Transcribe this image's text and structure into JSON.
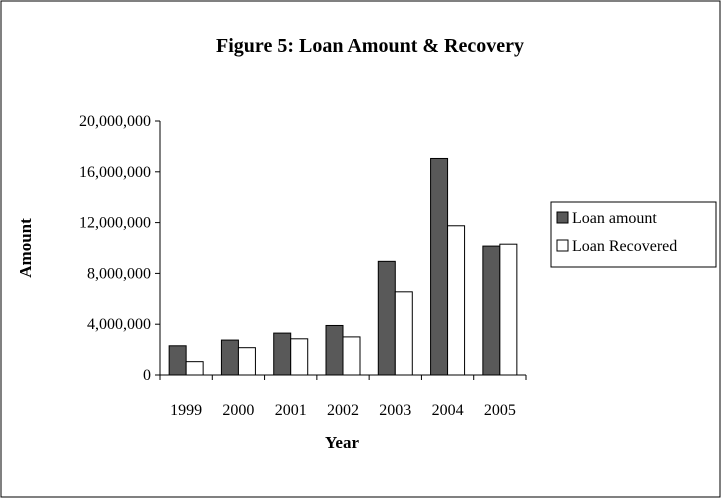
{
  "chart_data": {
    "type": "bar",
    "title": "Figure 5: Loan Amount & Recovery",
    "xlabel": "Year",
    "ylabel": "Amount",
    "categories": [
      "1999",
      "2000",
      "2001",
      "2002",
      "2003",
      "2004",
      "2005"
    ],
    "series": [
      {
        "name": "Loan amount",
        "color": "#595959",
        "values": [
          2300000,
          2750000,
          3300000,
          3900000,
          8950000,
          17050000,
          10150000
        ]
      },
      {
        "name": "Loan Recovered",
        "color": "#ffffff",
        "values": [
          1050000,
          2150000,
          2850000,
          3000000,
          6550000,
          11750000,
          10300000
        ]
      }
    ],
    "ylim": [
      0,
      20000000
    ],
    "yticks": [
      0,
      4000000,
      8000000,
      12000000,
      16000000,
      20000000
    ],
    "ytick_labels": [
      "0",
      "4,000,000",
      "8,000,000",
      "12,000,000",
      "16,000,000",
      "20,000,000"
    ],
    "grid": false,
    "legend_position": "right"
  }
}
